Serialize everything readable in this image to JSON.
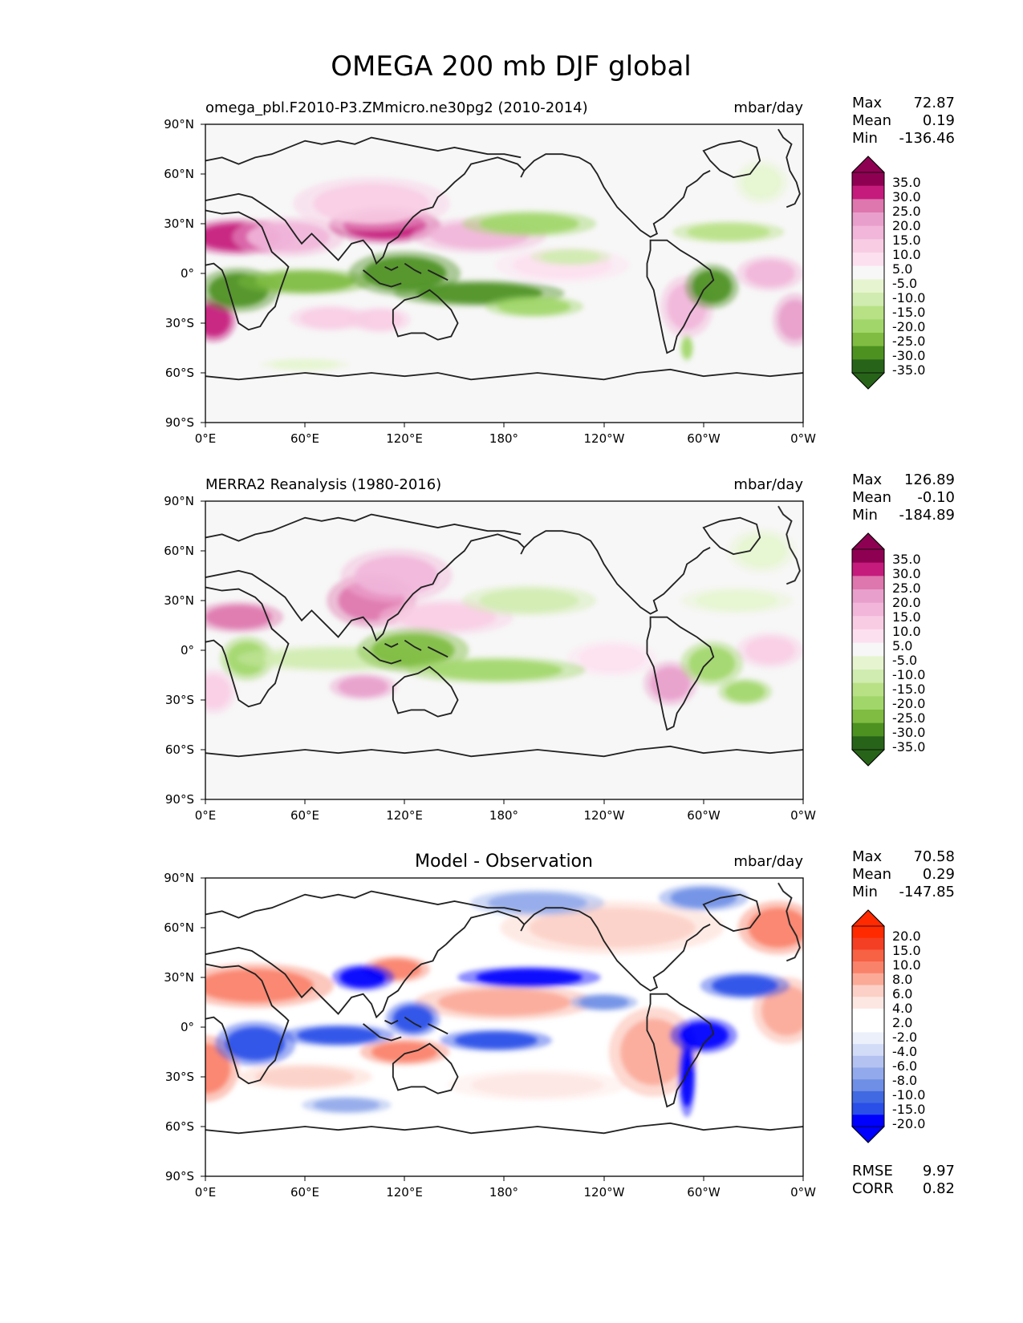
{
  "figure": {
    "title": "OMEGA 200 mb DJF global"
  },
  "colors": {
    "land_fill": "#f7f7f7",
    "coast_line": "#222222",
    "piyg_levels": [
      "#276419",
      "#4d9221",
      "#7fbc41",
      "#a1d76a",
      "#b8e186",
      "#d0ecb0",
      "#e6f5d0",
      "#f7f7f7",
      "#fde0ef",
      "#f8cde4",
      "#f1b6da",
      "#e89fcb",
      "#de77ae",
      "#c51b7d",
      "#8e0152"
    ],
    "diff_levels": [
      "#0000ff",
      "#2a4ee8",
      "#4169e1",
      "#6f8fe6",
      "#92aaeb",
      "#b3c2f0",
      "#d3dcf7",
      "#ecf0fb",
      "#ffffff",
      "#ffffff",
      "#fde7e3",
      "#fcd0c6",
      "#fbaa98",
      "#f9826a",
      "#f76144",
      "#f43f24",
      "#ff2a00"
    ]
  },
  "icons": {
    "colorbar_extend": "triangle-end-arrows"
  },
  "panels": [
    {
      "id": "test",
      "left_title": "omega_pbl.F2010-P3.ZMmicro.ne30pg2 (2010-2014)",
      "center_title": "",
      "right_title": "mbar/day",
      "stats": {
        "labels": [
          "Max",
          "Mean",
          "Min"
        ],
        "values": [
          "72.87",
          "0.19",
          "-136.46"
        ]
      },
      "colorbar_ticks": [
        "35.0",
        "30.0",
        "25.0",
        "20.0",
        "15.0",
        "10.0",
        "5.0",
        "-5.0",
        "-10.0",
        "-15.0",
        "-20.0",
        "-25.0",
        "-30.0",
        "-35.0"
      ],
      "extra_stats": null
    },
    {
      "id": "ref",
      "left_title": "MERRA2 Reanalysis (1980-2016)",
      "center_title": "",
      "right_title": "mbar/day",
      "stats": {
        "labels": [
          "Max",
          "Mean",
          "Min"
        ],
        "values": [
          "126.89",
          "-0.10",
          "-184.89"
        ]
      },
      "colorbar_ticks": [
        "35.0",
        "30.0",
        "25.0",
        "20.0",
        "15.0",
        "10.0",
        "5.0",
        "-5.0",
        "-10.0",
        "-15.0",
        "-20.0",
        "-25.0",
        "-30.0",
        "-35.0"
      ],
      "extra_stats": null
    },
    {
      "id": "diff",
      "left_title": "",
      "center_title": "Model - Observation",
      "right_title": "mbar/day",
      "stats": {
        "labels": [
          "Max",
          "Mean",
          "Min"
        ],
        "values": [
          "70.58",
          "0.29",
          "-147.85"
        ]
      },
      "colorbar_ticks": [
        "20.0",
        "15.0",
        "10.0",
        "8.0",
        "6.0",
        "4.0",
        "2.0",
        "-2.0",
        "-4.0",
        "-6.0",
        "-8.0",
        "-10.0",
        "-15.0",
        "-20.0"
      ],
      "extra_stats": {
        "labels": [
          "RMSE",
          "CORR"
        ],
        "values": [
          "9.97",
          "0.82"
        ]
      }
    }
  ],
  "chart_data": [
    {
      "type": "heatmap",
      "title": "omega_pbl.F2010-P3.ZMmicro.ne30pg2 (2010-2014)",
      "units": "mbar/day",
      "x_ticks": [
        "0°E",
        "60°E",
        "120°E",
        "180°",
        "120°W",
        "60°W",
        "0°W"
      ],
      "y_ticks": [
        "90°N",
        "60°N",
        "30°N",
        "0°",
        "30°S",
        "60°S",
        "90°S"
      ],
      "xlim": [
        0,
        360
      ],
      "ylim": [
        -90,
        90
      ],
      "levels": [
        -35,
        -30,
        -25,
        -20,
        -15,
        -10,
        -5,
        5,
        10,
        15,
        20,
        25,
        30,
        35
      ],
      "features": [
        {
          "lon": 20,
          "lat": 22,
          "rx": 25,
          "ry": 8,
          "value": 33
        },
        {
          "lon": 50,
          "lat": 22,
          "rx": 25,
          "ry": 9,
          "value": 20
        },
        {
          "lon": 5,
          "lat": -28,
          "rx": 10,
          "ry": 10,
          "value": 32
        },
        {
          "lon": 108,
          "lat": 29,
          "rx": 25,
          "ry": 8,
          "value": 34
        },
        {
          "lon": 100,
          "lat": 42,
          "rx": 35,
          "ry": 12,
          "value": 14
        },
        {
          "lon": 165,
          "lat": 23,
          "rx": 30,
          "ry": 8,
          "value": 16
        },
        {
          "lon": 215,
          "lat": 5,
          "rx": 30,
          "ry": 8,
          "value": 10
        },
        {
          "lon": 290,
          "lat": -20,
          "rx": 12,
          "ry": 14,
          "value": 20
        },
        {
          "lon": 340,
          "lat": 0,
          "rx": 15,
          "ry": 8,
          "value": 18
        },
        {
          "lon": 355,
          "lat": -28,
          "rx": 10,
          "ry": 12,
          "value": 22
        },
        {
          "lon": 75,
          "lat": -27,
          "rx": 18,
          "ry": 6,
          "value": 12
        },
        {
          "lon": 105,
          "lat": -28,
          "rx": 14,
          "ry": 6,
          "value": 12
        },
        {
          "lon": 20,
          "lat": -10,
          "rx": 18,
          "ry": 10,
          "value": -33
        },
        {
          "lon": 60,
          "lat": -5,
          "rx": 30,
          "ry": 6,
          "value": -26
        },
        {
          "lon": 120,
          "lat": 0,
          "rx": 25,
          "ry": 10,
          "value": -30
        },
        {
          "lon": 165,
          "lat": -12,
          "rx": 38,
          "ry": 6,
          "value": -33
        },
        {
          "lon": 198,
          "lat": -20,
          "rx": 22,
          "ry": 5,
          "value": -22
        },
        {
          "lon": 305,
          "lat": -8,
          "rx": 12,
          "ry": 10,
          "value": -34
        },
        {
          "lon": 290,
          "lat": -45,
          "rx": 3,
          "ry": 6,
          "value": -20
        },
        {
          "lon": 195,
          "lat": 30,
          "rx": 30,
          "ry": 6,
          "value": -22
        },
        {
          "lon": 315,
          "lat": 25,
          "rx": 25,
          "ry": 5,
          "value": -18
        },
        {
          "lon": 220,
          "lat": 10,
          "rx": 18,
          "ry": 4,
          "value": -12
        },
        {
          "lon": 335,
          "lat": 55,
          "rx": 12,
          "ry": 10,
          "value": -8
        },
        {
          "lon": 60,
          "lat": -55,
          "rx": 20,
          "ry": 3,
          "value": -7
        }
      ]
    },
    {
      "type": "heatmap",
      "title": "MERRA2 Reanalysis (1980-2016)",
      "units": "mbar/day",
      "x_ticks": [
        "0°E",
        "60°E",
        "120°E",
        "180°",
        "120°W",
        "60°W",
        "0°W"
      ],
      "y_ticks": [
        "90°N",
        "60°N",
        "30°N",
        "0°",
        "30°S",
        "60°S",
        "90°S"
      ],
      "xlim": [
        0,
        360
      ],
      "ylim": [
        -90,
        90
      ],
      "levels": [
        -35,
        -30,
        -25,
        -20,
        -15,
        -10,
        -5,
        5,
        10,
        15,
        20,
        25,
        30,
        35
      ],
      "features": [
        {
          "lon": 20,
          "lat": 20,
          "rx": 20,
          "ry": 7,
          "value": 26
        },
        {
          "lon": 100,
          "lat": 30,
          "rx": 20,
          "ry": 12,
          "value": 30
        },
        {
          "lon": 115,
          "lat": 45,
          "rx": 25,
          "ry": 12,
          "value": 18
        },
        {
          "lon": 145,
          "lat": 20,
          "rx": 30,
          "ry": 8,
          "value": 14
        },
        {
          "lon": 95,
          "lat": -22,
          "rx": 15,
          "ry": 6,
          "value": 22
        },
        {
          "lon": 280,
          "lat": -20,
          "rx": 12,
          "ry": 10,
          "value": 22
        },
        {
          "lon": 245,
          "lat": -5,
          "rx": 20,
          "ry": 8,
          "value": 10
        },
        {
          "lon": 340,
          "lat": 0,
          "rx": 15,
          "ry": 8,
          "value": 12
        },
        {
          "lon": 5,
          "lat": -25,
          "rx": 10,
          "ry": 10,
          "value": 14
        },
        {
          "lon": 25,
          "lat": -5,
          "rx": 12,
          "ry": 10,
          "value": -24
        },
        {
          "lon": 80,
          "lat": -5,
          "rx": 45,
          "ry": 6,
          "value": -14
        },
        {
          "lon": 125,
          "lat": 0,
          "rx": 25,
          "ry": 10,
          "value": -28
        },
        {
          "lon": 175,
          "lat": -12,
          "rx": 40,
          "ry": 6,
          "value": -22
        },
        {
          "lon": 305,
          "lat": -8,
          "rx": 14,
          "ry": 10,
          "value": -20
        },
        {
          "lon": 325,
          "lat": -25,
          "rx": 12,
          "ry": 6,
          "value": -20
        },
        {
          "lon": 195,
          "lat": 30,
          "rx": 30,
          "ry": 7,
          "value": -14
        },
        {
          "lon": 320,
          "lat": 30,
          "rx": 25,
          "ry": 6,
          "value": -8
        },
        {
          "lon": 335,
          "lat": 60,
          "rx": 15,
          "ry": 10,
          "value": -9
        }
      ]
    },
    {
      "type": "heatmap",
      "title": "Model - Observation",
      "units": "mbar/day",
      "x_ticks": [
        "0°E",
        "60°E",
        "120°E",
        "180°",
        "120°W",
        "60°W",
        "0°W"
      ],
      "y_ticks": [
        "90°N",
        "60°N",
        "30°N",
        "0°",
        "30°S",
        "60°S",
        "90°S"
      ],
      "xlim": [
        0,
        360
      ],
      "ylim": [
        -90,
        90
      ],
      "levels": [
        -20,
        -15,
        -10,
        -8,
        -6,
        -4,
        -2,
        2,
        4,
        6,
        8,
        10,
        15,
        20
      ],
      "features": [
        {
          "lon": 30,
          "lat": 25,
          "rx": 35,
          "ry": 10,
          "value": 18
        },
        {
          "lon": 115,
          "lat": 35,
          "rx": 15,
          "ry": 6,
          "value": 20
        },
        {
          "lon": 180,
          "lat": 15,
          "rx": 40,
          "ry": 8,
          "value": 14
        },
        {
          "lon": 120,
          "lat": -15,
          "rx": 20,
          "ry": 6,
          "value": 20
        },
        {
          "lon": 0,
          "lat": -25,
          "rx": 15,
          "ry": 15,
          "value": 18
        },
        {
          "lon": 350,
          "lat": 10,
          "rx": 15,
          "ry": 15,
          "value": 14
        },
        {
          "lon": 200,
          "lat": -35,
          "rx": 40,
          "ry": 7,
          "value": 8
        },
        {
          "lon": 245,
          "lat": 60,
          "rx": 50,
          "ry": 12,
          "value": 10
        },
        {
          "lon": 345,
          "lat": 60,
          "rx": 18,
          "ry": 12,
          "value": 16
        },
        {
          "lon": 60,
          "lat": -30,
          "rx": 30,
          "ry": 6,
          "value": 9
        },
        {
          "lon": 270,
          "lat": -15,
          "rx": 20,
          "ry": 20,
          "value": 12
        },
        {
          "lon": 30,
          "lat": -10,
          "rx": 18,
          "ry": 10,
          "value": -18
        },
        {
          "lon": 80,
          "lat": -5,
          "rx": 25,
          "ry": 5,
          "value": -16
        },
        {
          "lon": 95,
          "lat": 30,
          "rx": 14,
          "ry": 6,
          "value": -20
        },
        {
          "lon": 125,
          "lat": 5,
          "rx": 12,
          "ry": 8,
          "value": -16
        },
        {
          "lon": 195,
          "lat": 30,
          "rx": 32,
          "ry": 5,
          "value": -20
        },
        {
          "lon": 175,
          "lat": -8,
          "rx": 25,
          "ry": 5,
          "value": -18
        },
        {
          "lon": 300,
          "lat": -5,
          "rx": 15,
          "ry": 8,
          "value": -20
        },
        {
          "lon": 325,
          "lat": 25,
          "rx": 20,
          "ry": 6,
          "value": -16
        },
        {
          "lon": 290,
          "lat": -30,
          "rx": 4,
          "ry": 18,
          "value": -20
        },
        {
          "lon": 200,
          "lat": 75,
          "rx": 30,
          "ry": 6,
          "value": -6
        },
        {
          "lon": 300,
          "lat": 78,
          "rx": 20,
          "ry": 6,
          "value": -8
        },
        {
          "lon": 85,
          "lat": -47,
          "rx": 20,
          "ry": 4,
          "value": -7
        },
        {
          "lon": 240,
          "lat": 15,
          "rx": 15,
          "ry": 4,
          "value": -8
        }
      ]
    }
  ]
}
